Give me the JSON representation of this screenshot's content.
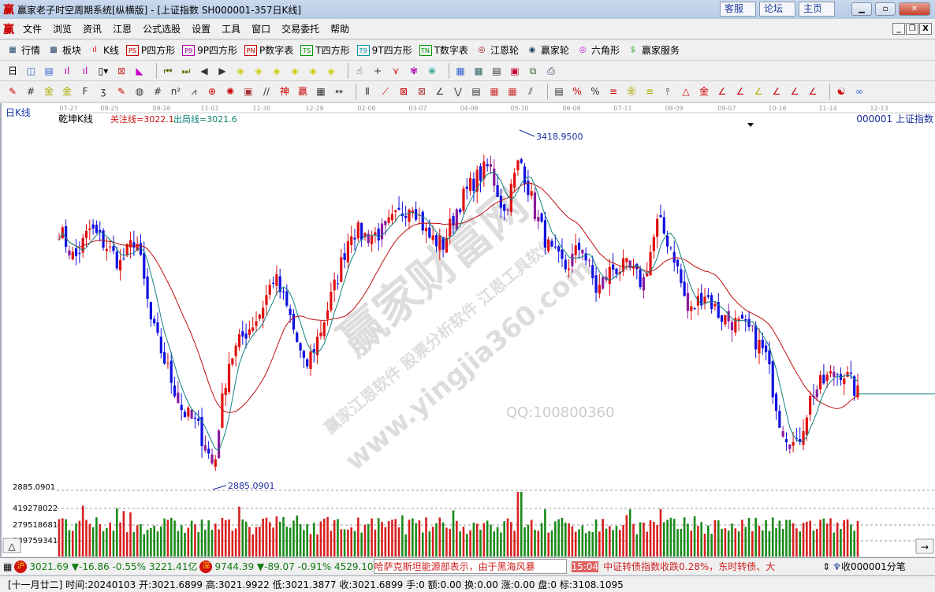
{
  "window": {
    "title": "赢家老子时空周期系统[纵横版] - [上证指数  SH000001-357日K线]",
    "logo": "赢",
    "links": [
      "客服",
      "论坛",
      "主页"
    ],
    "controls": [
      "minimize",
      "maximize",
      "close"
    ]
  },
  "menu": [
    "文件",
    "浏览",
    "资讯",
    "江恩",
    "公式选股",
    "设置",
    "工具",
    "窗口",
    "交易委托",
    "帮助"
  ],
  "toolbar1": [
    {
      "icon": "grid-icon",
      "label": "行情"
    },
    {
      "icon": "blocks-icon",
      "label": "板块"
    },
    {
      "icon": "kline-icon",
      "label": "K线"
    },
    {
      "icon": "PS",
      "label": "P四方形"
    },
    {
      "icon": "P9",
      "label": "9P四方形"
    },
    {
      "icon": "PN",
      "label": "P数字表"
    },
    {
      "icon": "TS",
      "label": "T四方形"
    },
    {
      "icon": "T9",
      "label": "9T四方形"
    },
    {
      "icon": "TN",
      "label": "T数字表"
    },
    {
      "icon": "gann-wheel-icon",
      "label": "江恩轮"
    },
    {
      "icon": "winner-wheel-icon",
      "label": "赢家轮"
    },
    {
      "icon": "hexagon-icon",
      "label": "六角形"
    },
    {
      "icon": "dollar-icon",
      "label": "赢家服务"
    }
  ],
  "chart": {
    "period_label": "日K线",
    "indicator_name": "乾坤K线",
    "focus_line": "关注线=3022.1",
    "exit_line": "出局线=3021.6",
    "symbol": "000001  上证指数",
    "dates": [
      "07-27",
      "08-25",
      "09-26",
      "11-01",
      "11-30",
      "12-29",
      "02-06",
      "03-07",
      "04-06",
      "05-10",
      "06-08",
      "07-11",
      "08-09",
      "09-07",
      "10-16",
      "11-14",
      "12-13"
    ],
    "high_label": "3418.9500",
    "low_label": "2885.0901",
    "low_axis": "2885.0901",
    "volume_axis": [
      "419278022",
      "279518681",
      "139759341"
    ],
    "watermarks": [
      "赢家财富网",
      "赢家江恩软件  股票分析软件 江恩工具软件",
      "www.yingjia360.com",
      "QQ:100800360"
    ],
    "close_path": [
      3272,
      3226,
      3272,
      3249,
      3220,
      3261,
      3132,
      3068,
      3003,
      2980,
      2921,
      3073,
      3114,
      3144,
      3202,
      3144,
      3062,
      3120,
      3191,
      3272,
      3261,
      3267,
      3290,
      3313,
      3261,
      3249,
      3308,
      3343,
      3366,
      3296,
      3378,
      3296,
      3237,
      3214,
      3249,
      3179,
      3214,
      3214,
      3191,
      3284,
      3237,
      3144,
      3179,
      3144,
      3132,
      3120,
      3085,
      2980,
      2945,
      3027,
      3050,
      3062,
      3027
    ],
    "colors": {
      "up": "#e01010",
      "down": "#1010e0",
      "neutral": "#8a1a9a",
      "ma_long": "#c01010",
      "ma_short": "#108080",
      "vol_up": "#d82020",
      "vol_down": "#1a8a1a"
    }
  },
  "ticker": {
    "sh_badge": "沪",
    "sh_price": "3021.69",
    "sh_change": "-16.86",
    "sh_pct": "-0.55%",
    "sh_amount": "3221.41亿",
    "sz_badge": "深",
    "sz_price": "9744.39",
    "sz_change": "-89.07",
    "sz_pct": "-0.91%",
    "sz_amount": "4529.10",
    "news1": "哈萨克斯坦能源部表示，由于黑海风暴",
    "news_time": "15:04",
    "news2": "中证转债指数收跌0.28%，东时转债、大",
    "receive": "收000001分笔"
  },
  "status": "[十一月廿二] 时间:20240103 开:3021.6899 高:3021.9922 低:3021.3877 收:3021.6899 手:0 额:0.00 换:0.00 涨:0.00 盘:0 标:3108.1095"
}
